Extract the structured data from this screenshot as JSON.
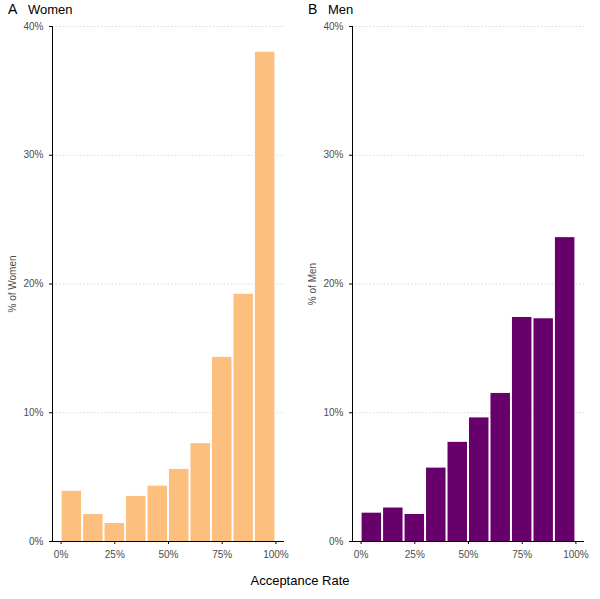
{
  "chart_data": [
    {
      "type": "histogram",
      "title": "Women",
      "annotations": [
        "A"
      ],
      "xlabel": "Acceptance Rate",
      "ylabel": "% of Women",
      "bins": [
        0,
        10,
        20,
        30,
        40,
        50,
        60,
        70,
        80,
        90,
        100
      ],
      "values": [
        3.9,
        2.1,
        1.4,
        3.5,
        4.3,
        5.6,
        7.6,
        14.3,
        19.2,
        38.0
      ],
      "color": "#fdbf7e",
      "xlim": [
        -4,
        104
      ],
      "xticks": [
        {
          "value": 0,
          "label": "0%"
        },
        {
          "value": 25,
          "label": "25%"
        },
        {
          "value": 50,
          "label": "50%"
        },
        {
          "value": 75,
          "label": "75%"
        },
        {
          "value": 100,
          "label": "100%"
        }
      ],
      "ylim": [
        0,
        40
      ],
      "yticks": [
        {
          "value": 0,
          "label": "0%"
        },
        {
          "value": 10,
          "label": "10%"
        },
        {
          "value": 20,
          "label": "20%"
        },
        {
          "value": 30,
          "label": "30%"
        },
        {
          "value": 40,
          "label": "40%"
        }
      ],
      "grid": true
    },
    {
      "type": "histogram",
      "title": "Men",
      "annotations": [
        "B"
      ],
      "ylabel": "% of Men",
      "bins": [
        0,
        10,
        20,
        30,
        40,
        50,
        60,
        70,
        80,
        90,
        100
      ],
      "values": [
        2.2,
        2.6,
        2.1,
        5.7,
        7.7,
        9.6,
        11.5,
        17.4,
        17.3,
        23.6
      ],
      "color": "#67006a",
      "xlim": [
        -4,
        104
      ],
      "xticks": [
        {
          "value": 0,
          "label": "0%"
        },
        {
          "value": 25,
          "label": "25%"
        },
        {
          "value": 50,
          "label": "50%"
        },
        {
          "value": 75,
          "label": "75%"
        },
        {
          "value": 100,
          "label": "100%"
        }
      ],
      "ylim": [
        0,
        40
      ],
      "yticks": [
        {
          "value": 0,
          "label": "0%"
        },
        {
          "value": 10,
          "label": "10%"
        },
        {
          "value": 20,
          "label": "20%"
        },
        {
          "value": 30,
          "label": "30%"
        },
        {
          "value": 40,
          "label": "40%"
        }
      ],
      "grid": true
    }
  ]
}
